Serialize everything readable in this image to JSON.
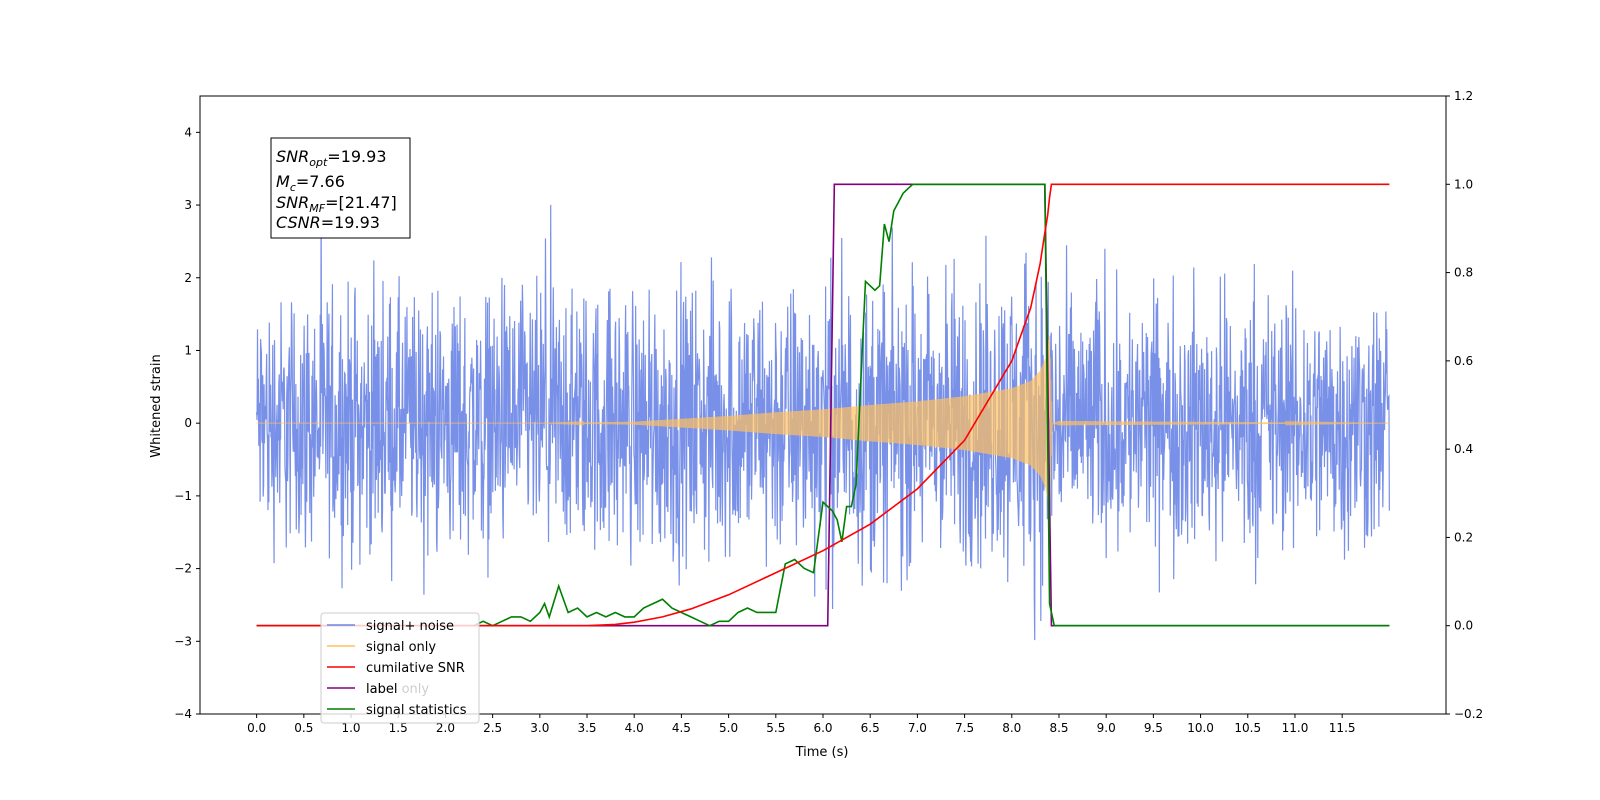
{
  "chart_data": {
    "type": "line",
    "xlabel": "Time (s)",
    "ylabel": "Whitened strain",
    "xlim": [
      -0.6,
      12.6
    ],
    "ylim_left": [
      -4,
      4.5
    ],
    "ylim_right": [
      -0.2,
      1.2
    ],
    "x_ticks": [
      0.0,
      0.5,
      1.0,
      1.5,
      2.0,
      2.5,
      3.0,
      3.5,
      4.0,
      4.5,
      5.0,
      5.5,
      6.0,
      6.5,
      7.0,
      7.5,
      8.0,
      8.5,
      9.0,
      9.5,
      10.0,
      10.5,
      11.0,
      11.5
    ],
    "x_tick_labels": [
      "0.0",
      "0.5",
      "1.0",
      "1.5",
      "2.0",
      "2.5",
      "3.0",
      "3.5",
      "4.0",
      "4.5",
      "5.0",
      "5.5",
      "6.0",
      "6.5",
      "7.0",
      "7.5",
      "8.0",
      "8.5",
      "9.0",
      "9.5",
      "10.0",
      "10.5",
      "11.0",
      "11.5"
    ],
    "left_ticks": [
      -4,
      -3,
      -2,
      -1,
      0,
      1,
      2,
      3,
      4
    ],
    "left_tick_labels": [
      "−4",
      "−3",
      "−2",
      "−1",
      "0",
      "1",
      "2",
      "3",
      "4"
    ],
    "right_ticks": [
      -0.2,
      0.0,
      0.2,
      0.4,
      0.6,
      0.8,
      1.0,
      1.2
    ],
    "right_tick_labels": [
      "−0.2",
      "0.0",
      "0.2",
      "0.4",
      "0.6",
      "0.8",
      "1.0",
      "1.2"
    ],
    "annotation": {
      "snr_opt": {
        "sym": "SNR",
        "sub": "opt",
        "value": "=19.93"
      },
      "mc": {
        "sym": "M",
        "sub": "c",
        "value": "=7.66"
      },
      "snr_mf": {
        "sym": "SNR",
        "sub": "MF",
        "value": "=[21.47]"
      },
      "csnr": {
        "sym": "CSNR",
        "value": "=19.93"
      }
    },
    "legend": {
      "placement": "lower-left",
      "entries": [
        {
          "label": "signal+ noise",
          "color": "#6d87e6"
        },
        {
          "label": "signal only",
          "color": "#ffc060"
        },
        {
          "label": "cumilative SNR",
          "color": "#ff0000"
        },
        {
          "label": "label",
          "color": "#800080"
        },
        {
          "label": "signal statistics",
          "color": "#008000"
        }
      ],
      "occluded_label": "label only"
    },
    "series": [
      {
        "name": "signal+ noise",
        "axis": "left",
        "color": "#6d87e6",
        "envelope": {
          "x": [
            0,
            2,
            4,
            5.5,
            6,
            6.5,
            7,
            7.5,
            8,
            8.3,
            8.4,
            8.5,
            9,
            10,
            11,
            12
          ],
          "upper": [
            2.5,
            2.6,
            2.7,
            2.8,
            2.85,
            2.9,
            2.95,
            3.0,
            3.1,
            3.3,
            3.6,
            2.6,
            2.55,
            2.6,
            2.55,
            2.5
          ],
          "lower": [
            -2.5,
            -2.6,
            -2.7,
            -2.8,
            -2.85,
            -2.9,
            -2.95,
            -3.0,
            -3.1,
            -3.3,
            -3.6,
            -2.6,
            -2.55,
            -2.6,
            -2.55,
            -2.5
          ]
        }
      },
      {
        "name": "signal only",
        "axis": "left",
        "color": "#ffc060",
        "envelope": {
          "x": [
            0,
            3,
            4.0,
            4.5,
            5.0,
            5.5,
            6.0,
            6.5,
            7.0,
            7.5,
            8.0,
            8.2,
            8.3,
            8.36,
            8.4,
            8.43,
            8.5,
            12
          ],
          "amplitude": [
            0,
            0,
            0.02,
            0.06,
            0.1,
            0.15,
            0.19,
            0.25,
            0.3,
            0.37,
            0.48,
            0.58,
            0.72,
            0.9,
            1.2,
            0,
            0.03,
            0
          ]
        }
      },
      {
        "name": "cumilative SNR",
        "axis": "right",
        "color": "#ff0000",
        "x": [
          0,
          3.5,
          3.8,
          4.0,
          4.3,
          4.6,
          5.0,
          5.5,
          6.0,
          6.5,
          7.0,
          7.5,
          8.0,
          8.2,
          8.3,
          8.35,
          8.38,
          8.4,
          8.42,
          12
        ],
        "y": [
          0,
          0,
          0.003,
          0.008,
          0.02,
          0.038,
          0.07,
          0.12,
          0.17,
          0.23,
          0.31,
          0.42,
          0.6,
          0.72,
          0.82,
          0.89,
          0.93,
          0.97,
          1.0,
          1.0
        ]
      },
      {
        "name": "label",
        "axis": "right",
        "color": "#800080",
        "x": [
          0,
          6.05,
          6.12,
          8.35,
          8.42,
          12
        ],
        "y": [
          0,
          0,
          1,
          1,
          0,
          0
        ]
      },
      {
        "name": "signal statistics",
        "axis": "right",
        "color": "#008000",
        "x": [
          0,
          2.3,
          2.4,
          2.5,
          2.6,
          2.7,
          2.8,
          2.9,
          3.0,
          3.05,
          3.1,
          3.2,
          3.3,
          3.4,
          3.5,
          3.6,
          3.7,
          3.8,
          3.9,
          4.0,
          4.1,
          4.2,
          4.3,
          4.4,
          4.5,
          4.6,
          4.7,
          4.8,
          4.9,
          5.0,
          5.1,
          5.2,
          5.3,
          5.4,
          5.5,
          5.6,
          5.7,
          5.8,
          5.9,
          6.0,
          6.1,
          6.15,
          6.2,
          6.25,
          6.3,
          6.35,
          6.4,
          6.45,
          6.5,
          6.55,
          6.6,
          6.65,
          6.7,
          6.75,
          6.8,
          6.85,
          6.9,
          6.95,
          7.0,
          7.05,
          7.1,
          7.2,
          7.3,
          7.5,
          8.0,
          8.35,
          8.4,
          8.45,
          8.5,
          12
        ],
        "y": [
          0,
          0,
          0.01,
          0.0,
          0.01,
          0.02,
          0.02,
          0.01,
          0.03,
          0.05,
          0.02,
          0.09,
          0.03,
          0.04,
          0.02,
          0.03,
          0.02,
          0.03,
          0.02,
          0.02,
          0.04,
          0.05,
          0.06,
          0.04,
          0.03,
          0.02,
          0.01,
          0.0,
          0.01,
          0.01,
          0.03,
          0.04,
          0.03,
          0.03,
          0.03,
          0.14,
          0.15,
          0.13,
          0.12,
          0.28,
          0.26,
          0.24,
          0.19,
          0.27,
          0.27,
          0.32,
          0.55,
          0.78,
          0.77,
          0.76,
          0.77,
          0.91,
          0.87,
          0.94,
          0.96,
          0.98,
          0.99,
          1.0,
          1.0,
          1.0,
          1.0,
          1.0,
          1.0,
          1.0,
          1.0,
          1.0,
          0.05,
          0.0,
          0.0,
          0.0
        ]
      }
    ]
  }
}
